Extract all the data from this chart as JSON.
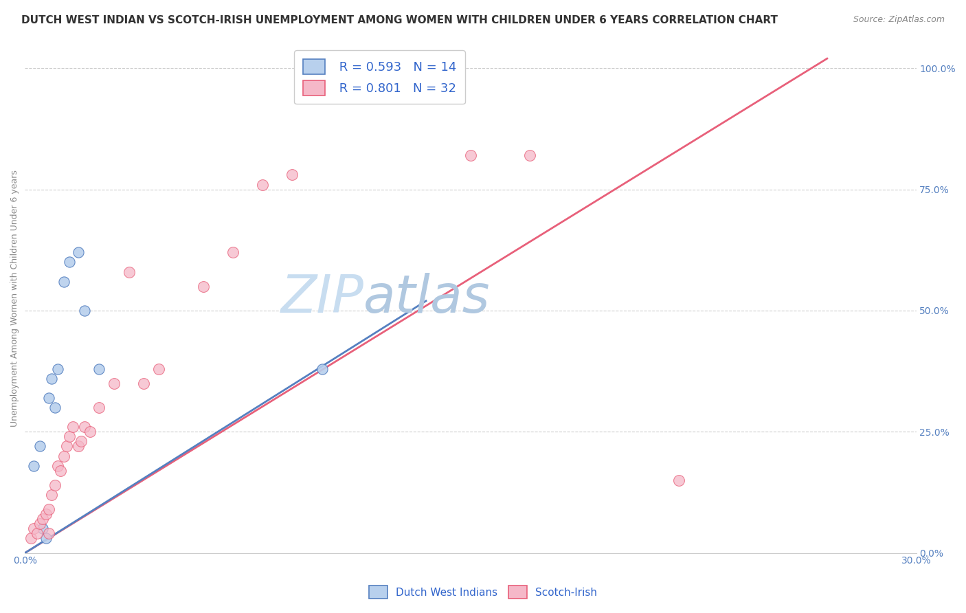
{
  "title": "DUTCH WEST INDIAN VS SCOTCH-IRISH UNEMPLOYMENT AMONG WOMEN WITH CHILDREN UNDER 6 YEARS CORRELATION CHART",
  "source": "Source: ZipAtlas.com",
  "ylabel": "Unemployment Among Women with Children Under 6 years",
  "blue_label": "Dutch West Indians",
  "pink_label": "Scotch-Irish",
  "blue_R": "R = 0.593",
  "blue_N": "N = 14",
  "pink_R": "R = 0.801",
  "pink_N": "N = 32",
  "blue_color": "#b8d0ed",
  "pink_color": "#f5b8c8",
  "blue_line_color": "#5580c0",
  "pink_line_color": "#e8607a",
  "dashed_line_color": "#aaaaaa",
  "background_color": "#ffffff",
  "watermark_zip": "ZIP",
  "watermark_atlas": "atlas",
  "xlim": [
    0.0,
    0.3
  ],
  "ylim": [
    0.0,
    1.05
  ],
  "right_ytick_vals": [
    0.0,
    0.25,
    0.5,
    0.75,
    1.0
  ],
  "right_ytick_labels": [
    "0.0%",
    "25.0%",
    "50.0%",
    "75.0%",
    "100.0%"
  ],
  "blue_points_x": [
    0.003,
    0.005,
    0.006,
    0.007,
    0.008,
    0.009,
    0.01,
    0.011,
    0.013,
    0.015,
    0.018,
    0.02,
    0.025,
    0.1
  ],
  "blue_points_y": [
    0.18,
    0.22,
    0.05,
    0.03,
    0.32,
    0.36,
    0.3,
    0.38,
    0.56,
    0.6,
    0.62,
    0.5,
    0.38,
    0.38
  ],
  "pink_points_x": [
    0.002,
    0.003,
    0.004,
    0.005,
    0.006,
    0.007,
    0.008,
    0.008,
    0.009,
    0.01,
    0.011,
    0.012,
    0.013,
    0.014,
    0.015,
    0.016,
    0.018,
    0.019,
    0.02,
    0.022,
    0.025,
    0.03,
    0.035,
    0.04,
    0.045,
    0.06,
    0.07,
    0.08,
    0.09,
    0.15,
    0.17,
    0.22
  ],
  "pink_points_y": [
    0.03,
    0.05,
    0.04,
    0.06,
    0.07,
    0.08,
    0.04,
    0.09,
    0.12,
    0.14,
    0.18,
    0.17,
    0.2,
    0.22,
    0.24,
    0.26,
    0.22,
    0.23,
    0.26,
    0.25,
    0.3,
    0.35,
    0.58,
    0.35,
    0.38,
    0.55,
    0.62,
    0.76,
    0.78,
    0.82,
    0.82,
    0.15
  ],
  "blue_line_x": [
    0.0,
    0.135
  ],
  "blue_line_y": [
    0.0,
    0.52
  ],
  "pink_line_x": [
    0.0,
    0.27
  ],
  "pink_line_y": [
    0.0,
    1.02
  ],
  "dashed_line_x": [
    0.0,
    0.27
  ],
  "dashed_line_y": [
    0.0,
    1.02
  ],
  "title_fontsize": 11,
  "source_fontsize": 9,
  "axis_label_fontsize": 9,
  "tick_fontsize": 10,
  "legend_fontsize": 13,
  "watermark_zip_fontsize": 55,
  "watermark_atlas_fontsize": 55,
  "watermark_zip_color": "#c8ddf0",
  "watermark_atlas_color": "#b0c8e0"
}
